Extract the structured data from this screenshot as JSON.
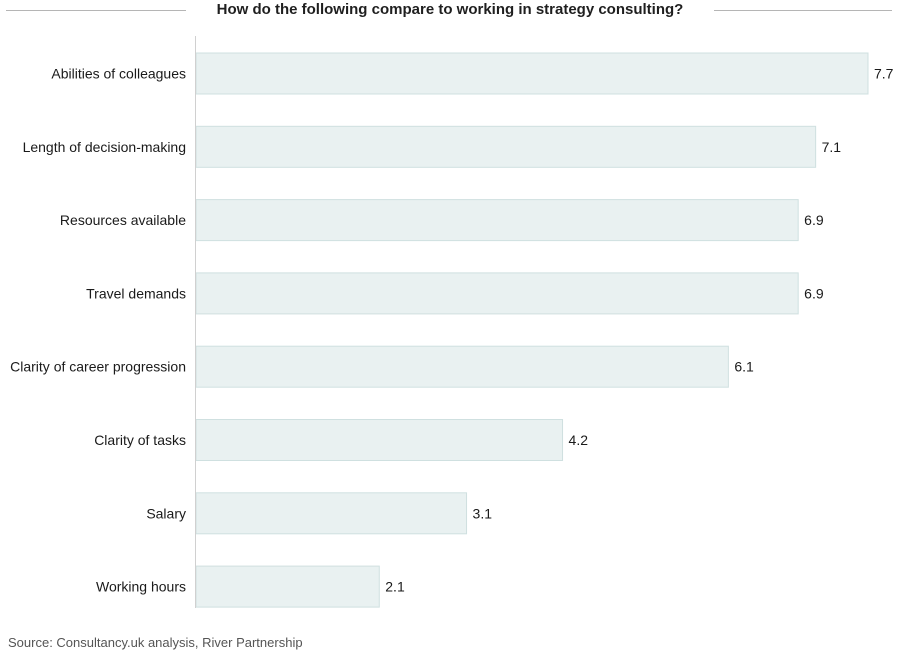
{
  "chart_data": {
    "type": "bar",
    "orientation": "horizontal",
    "title": "How do the following compare to working in strategy consulting?",
    "categories": [
      "Abilities of colleagues",
      "Length of decision-making",
      "Resources available",
      "Travel demands",
      "Clarity of career progression",
      "Clarity of tasks",
      "Salary",
      "Working hours"
    ],
    "values": [
      7.7,
      7.1,
      6.9,
      6.9,
      6.1,
      4.2,
      3.1,
      2.1
    ],
    "value_labels": [
      "7.7",
      "7.1",
      "6.9",
      "6.9",
      "6.1",
      "4.2",
      "3.1",
      "2.1"
    ],
    "xlim": [
      0,
      7.7
    ],
    "grid": false,
    "legend": "none",
    "bar_color": "#e9f1f1",
    "bar_border_color": "#cfe0e0",
    "axis_color": "#d0d0d0"
  },
  "source": "Source: Consultancy.uk analysis, River Partnership"
}
